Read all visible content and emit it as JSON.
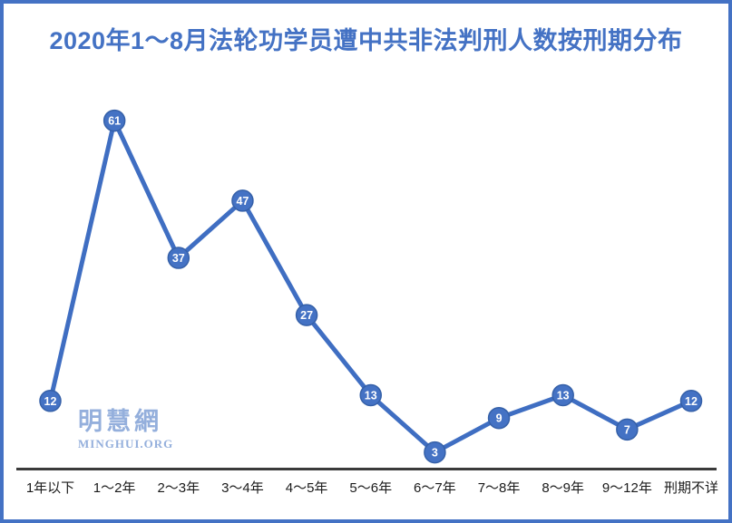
{
  "title": "2020年1～8月法轮功学员遭中共非法判刑人数按刑期分布",
  "watermark": {
    "name": "明慧網",
    "org": "MINGHUI.ORG"
  },
  "chart_data": {
    "type": "line",
    "title": "2020年1～8月法轮功学员遭中共非法判刑人数按刑期分布",
    "categories": [
      "1年以下",
      "1～2年",
      "2～3年",
      "3～4年",
      "4～5年",
      "5～6年",
      "6～7年",
      "7～8年",
      "8～9年",
      "9～12年",
      "刑期不详"
    ],
    "values": [
      12,
      61,
      37,
      47,
      27,
      13,
      3,
      9,
      13,
      7,
      12
    ],
    "xlabel": "",
    "ylabel": "",
    "ylim": [
      0,
      65
    ],
    "grid": false,
    "legend": "none",
    "data_labels": true,
    "colors": {
      "line": "#3F6EC2",
      "marker_fill": "#4472C4",
      "marker_stroke": "#3560A8",
      "label_text": "#FFFFFF",
      "title": "#4472C4",
      "axis_line": "#3A3A3A",
      "tick_text": "#1A1A1A",
      "watermark": "#94AFDC",
      "border": "#4472C4"
    }
  }
}
